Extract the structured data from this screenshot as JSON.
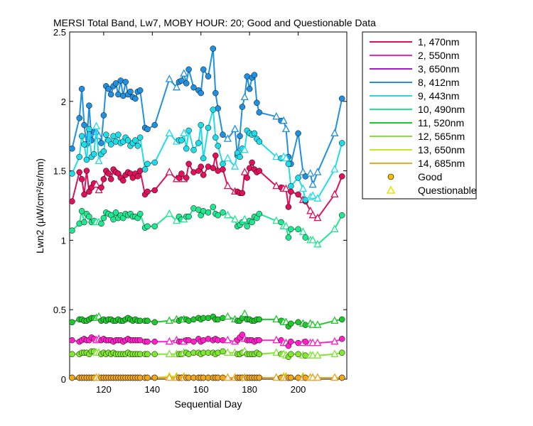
{
  "chart_data": {
    "type": "line",
    "title": "MERSI Total Band, Lw7, MOBY HOUR: 20;  Good and Questionable Data",
    "xlabel": "Sequential Day",
    "ylabel": "Lwn2 (µW/cm²/sr/nm)",
    "xlim": [
      106,
      220
    ],
    "ylim": [
      0,
      2.5
    ],
    "xticks": [
      120,
      140,
      160,
      180,
      200
    ],
    "yticks": [
      0,
      0.5,
      1,
      1.5,
      2,
      2.5
    ],
    "legend_position": "outside-right",
    "x": [
      107,
      110,
      111,
      112,
      113,
      114,
      115,
      116,
      117,
      118,
      119,
      120,
      121,
      122,
      123,
      124,
      125,
      126,
      127,
      128,
      129,
      130,
      131,
      132,
      133,
      134,
      135,
      137,
      138,
      141,
      147,
      150,
      151,
      152,
      153,
      154,
      155,
      157,
      159,
      160,
      161,
      163,
      165,
      166,
      167,
      169,
      171,
      174,
      175,
      176,
      177,
      178,
      179,
      180,
      181,
      182,
      183,
      184,
      191,
      193,
      194,
      195,
      196,
      197,
      200,
      202,
      203,
      205,
      206,
      208,
      215,
      218
    ],
    "quality": [
      "G",
      "G",
      "G",
      "G",
      "G",
      "G",
      "G",
      "G",
      "Q",
      "Q",
      "G",
      "G",
      "G",
      "G",
      "G",
      "G",
      "G",
      "G",
      "G",
      "G",
      "G",
      "G",
      "G",
      "G",
      "G",
      "G",
      "G",
      "G",
      "G",
      "G",
      "Q",
      "Q",
      "G",
      "G",
      "Q",
      "G",
      "G",
      "G",
      "G",
      "G",
      "G",
      "G",
      "G",
      "G",
      "G",
      "G",
      "Q",
      "Q",
      "G",
      "G",
      "G",
      "Q",
      "G",
      "G",
      "G",
      "G",
      "G",
      "G",
      "Q",
      "G",
      "Q",
      "Q",
      "G",
      "G",
      "G",
      "Q",
      "G",
      "Q",
      "Q",
      "Q",
      "Q",
      "G"
    ],
    "series": [
      {
        "name": "1, 470nm",
        "color": "#E0105A",
        "values": [
          1.28,
          1.49,
          1.44,
          1.33,
          1.5,
          1.35,
          1.38,
          1.41,
          1.4,
          1.36,
          1.38,
          1.44,
          1.5,
          1.48,
          1.44,
          1.51,
          1.49,
          1.48,
          1.45,
          1.43,
          1.47,
          1.49,
          1.48,
          1.45,
          1.48,
          1.46,
          1.5,
          1.33,
          1.35,
          1.36,
          1.49,
          1.44,
          1.45,
          1.48,
          1.44,
          1.45,
          1.55,
          1.49,
          1.5,
          1.53,
          1.47,
          1.53,
          1.52,
          1.61,
          1.5,
          1.51,
          1.39,
          1.35,
          1.35,
          1.34,
          1.34,
          1.49,
          1.45,
          1.52,
          1.56,
          1.51,
          1.49,
          1.5,
          1.39,
          1.38,
          1.37,
          1.37,
          1.24,
          1.35,
          1.33,
          1.29,
          1.28,
          1.21,
          1.18,
          1.16,
          1.33,
          1.46
        ]
      },
      {
        "name": "2, 550nm",
        "color": "#FF20C8",
        "values": [
          0.28,
          0.27,
          0.28,
          0.29,
          0.28,
          0.28,
          0.3,
          0.29,
          0.28,
          0.29,
          0.28,
          0.29,
          0.28,
          0.28,
          0.28,
          0.27,
          0.28,
          0.28,
          0.28,
          0.27,
          0.28,
          0.29,
          0.28,
          0.28,
          0.28,
          0.28,
          0.28,
          0.27,
          0.27,
          0.27,
          0.27,
          0.28,
          0.27,
          0.27,
          0.27,
          0.28,
          0.28,
          0.27,
          0.29,
          0.27,
          0.28,
          0.29,
          0.28,
          0.29,
          0.28,
          0.28,
          0.28,
          0.27,
          0.28,
          0.3,
          0.32,
          0.29,
          0.28,
          0.28,
          0.28,
          0.27,
          0.28,
          0.28,
          0.28,
          0.28,
          0.26,
          0.26,
          0.24,
          0.27,
          0.26,
          0.26,
          0.27,
          0.26,
          0.26,
          0.26,
          0.27,
          0.29
        ]
      },
      {
        "name": "3, 650nm",
        "color": "#A020C8",
        "values": [
          0.01,
          0.01,
          0.01,
          0.01,
          0.01,
          0.01,
          0.01,
          0.01,
          0.01,
          0.01,
          0.01,
          0.01,
          0.01,
          0.01,
          0.01,
          0.01,
          0.01,
          0.01,
          0.01,
          0.01,
          0.01,
          0.01,
          0.01,
          0.01,
          0.01,
          0.01,
          0.01,
          0.01,
          0.01,
          0.01,
          0.01,
          0.01,
          0.01,
          0.01,
          0.01,
          0.01,
          0.01,
          0.01,
          0.01,
          0.01,
          0.01,
          0.01,
          0.01,
          0.01,
          0.01,
          0.01,
          0.01,
          0.01,
          0.01,
          0.01,
          0.01,
          0.01,
          0.01,
          0.01,
          0.01,
          0.01,
          0.01,
          0.01,
          0.01,
          0.01,
          0.01,
          0.01,
          0.01,
          0.01,
          0.01,
          0.01,
          0.01,
          0.01,
          0.01,
          0.01,
          0.01,
          0.01
        ]
      },
      {
        "name": "8, 412nm",
        "color": "#2090E0",
        "values": [
          1.66,
          1.88,
          2.09,
          1.83,
          1.69,
          1.97,
          1.72,
          1.78,
          1.78,
          1.75,
          1.7,
          1.9,
          2.11,
          2.09,
          2.05,
          2.11,
          2.13,
          2.05,
          2.15,
          2.04,
          2.14,
          2.05,
          2.07,
          2.03,
          2.02,
          2.07,
          2.08,
          1.81,
          1.8,
          1.83,
          2.16,
          2.1,
          2.14,
          2.15,
          2.2,
          2.13,
          2.23,
          2.1,
          2.08,
          2.06,
          2.23,
          2.18,
          2.38,
          2.06,
          1.95,
          1.76,
          1.73,
          1.8,
          1.61,
          1.75,
          1.96,
          2.03,
          2.18,
          2.09,
          2.17,
          2.19,
          1.99,
          1.92,
          1.89,
          1.86,
          1.86,
          1.8,
          1.6,
          1.55,
          1.77,
          1.49,
          1.46,
          1.48,
          1.4,
          1.49,
          1.77,
          2.02
        ]
      },
      {
        "name": "9, 443nm",
        "color": "#20DCE8",
        "values": [
          1.48,
          1.6,
          1.75,
          1.69,
          1.58,
          1.8,
          1.6,
          1.62,
          1.82,
          1.57,
          1.62,
          1.64,
          1.76,
          1.72,
          1.69,
          1.75,
          1.71,
          1.76,
          1.7,
          1.71,
          1.74,
          1.72,
          1.68,
          1.7,
          1.72,
          1.68,
          1.74,
          1.51,
          1.55,
          1.56,
          1.77,
          1.71,
          1.72,
          1.72,
          1.77,
          1.66,
          1.79,
          1.65,
          1.7,
          1.83,
          1.59,
          1.81,
          1.94,
          1.74,
          1.68,
          1.55,
          1.59,
          1.53,
          1.63,
          1.6,
          1.66,
          1.65,
          1.79,
          1.77,
          1.76,
          1.77,
          1.73,
          1.71,
          1.6,
          1.59,
          1.6,
          1.59,
          1.55,
          1.39,
          1.45,
          1.37,
          1.29,
          1.31,
          1.32,
          1.3,
          1.51,
          1.7
        ]
      },
      {
        "name": "10, 490nm",
        "color": "#20E890",
        "values": [
          1.07,
          1.12,
          1.21,
          1.13,
          1.19,
          1.17,
          1.13,
          1.14,
          1.13,
          1.13,
          1.12,
          1.16,
          1.2,
          1.19,
          1.18,
          1.15,
          1.2,
          1.16,
          1.18,
          1.16,
          1.19,
          1.18,
          1.19,
          1.17,
          1.17,
          1.16,
          1.19,
          1.09,
          1.1,
          1.1,
          1.19,
          1.14,
          1.17,
          1.15,
          1.15,
          1.17,
          1.17,
          1.23,
          1.22,
          1.18,
          1.21,
          1.2,
          1.24,
          1.19,
          1.18,
          1.2,
          1.18,
          1.15,
          1.1,
          1.11,
          1.13,
          1.15,
          1.1,
          1.14,
          1.13,
          1.17,
          1.16,
          1.19,
          1.14,
          1.13,
          1.1,
          1.1,
          1.02,
          1.08,
          1.08,
          1.06,
          1.02,
          1.0,
          1.0,
          0.97,
          1.08,
          1.18
        ]
      },
      {
        "name": "11, 520nm",
        "color": "#20C830",
        "values": [
          0.41,
          0.43,
          0.43,
          0.42,
          0.42,
          0.43,
          0.44,
          0.44,
          0.44,
          0.45,
          0.42,
          0.43,
          0.42,
          0.43,
          0.43,
          0.42,
          0.42,
          0.43,
          0.42,
          0.42,
          0.43,
          0.44,
          0.43,
          0.42,
          0.43,
          0.42,
          0.42,
          0.42,
          0.42,
          0.41,
          0.42,
          0.43,
          0.42,
          0.43,
          0.43,
          0.43,
          0.42,
          0.43,
          0.44,
          0.43,
          0.44,
          0.44,
          0.45,
          0.43,
          0.43,
          0.44,
          0.45,
          0.43,
          0.42,
          0.42,
          0.44,
          0.47,
          0.43,
          0.43,
          0.42,
          0.42,
          0.43,
          0.43,
          0.43,
          0.42,
          0.41,
          0.41,
          0.38,
          0.4,
          0.41,
          0.4,
          0.39,
          0.4,
          0.39,
          0.39,
          0.42,
          0.43
        ]
      },
      {
        "name": "12, 565nm",
        "color": "#80E830",
        "values": [
          0.18,
          0.18,
          0.19,
          0.19,
          0.19,
          0.18,
          0.2,
          0.2,
          0.19,
          0.19,
          0.18,
          0.19,
          0.18,
          0.19,
          0.18,
          0.19,
          0.18,
          0.18,
          0.18,
          0.18,
          0.18,
          0.19,
          0.18,
          0.18,
          0.18,
          0.18,
          0.18,
          0.18,
          0.18,
          0.18,
          0.18,
          0.18,
          0.18,
          0.18,
          0.19,
          0.19,
          0.18,
          0.19,
          0.19,
          0.18,
          0.19,
          0.19,
          0.19,
          0.18,
          0.19,
          0.2,
          0.19,
          0.19,
          0.18,
          0.18,
          0.19,
          0.2,
          0.18,
          0.18,
          0.18,
          0.18,
          0.19,
          0.18,
          0.19,
          0.18,
          0.18,
          0.17,
          0.16,
          0.18,
          0.18,
          0.17,
          0.17,
          0.17,
          0.17,
          0.17,
          0.18,
          0.19
        ]
      },
      {
        "name": "13, 650nm",
        "color": "#C8E820",
        "values": [
          0.01,
          0.01,
          0.01,
          0.01,
          0.01,
          0.01,
          0.01,
          0.01,
          0.01,
          0.01,
          0.01,
          0.01,
          0.01,
          0.01,
          0.01,
          0.01,
          0.01,
          0.01,
          0.01,
          0.01,
          0.01,
          0.01,
          0.01,
          0.01,
          0.01,
          0.01,
          0.01,
          0.01,
          0.01,
          0.01,
          0.02,
          0.02,
          0.01,
          0.01,
          0.02,
          0.01,
          0.01,
          0.01,
          0.01,
          0.01,
          0.01,
          0.01,
          0.01,
          0.01,
          0.01,
          0.01,
          0.01,
          0.01,
          0.01,
          0.01,
          0.01,
          0.01,
          0.01,
          0.01,
          0.01,
          0.01,
          0.01,
          0.01,
          0.01,
          0.01,
          0.02,
          0.02,
          0.01,
          0.01,
          0.01,
          0.02,
          0.01,
          0.01,
          0.01,
          0.01,
          0.01,
          0.01
        ]
      },
      {
        "name": "14, 685nm",
        "color": "#F0A820",
        "values": [
          0.01,
          0.01,
          0.01,
          0.01,
          0.01,
          0.01,
          0.01,
          0.01,
          0.01,
          0.01,
          0.01,
          0.01,
          0.01,
          0.01,
          0.01,
          0.01,
          0.01,
          0.01,
          0.01,
          0.01,
          0.01,
          0.01,
          0.01,
          0.01,
          0.01,
          0.01,
          0.01,
          0.01,
          0.01,
          0.01,
          0.01,
          0.01,
          0.01,
          0.01,
          0.01,
          0.01,
          0.01,
          0.01,
          0.01,
          0.01,
          0.01,
          0.01,
          0.01,
          0.01,
          0.01,
          0.01,
          0.01,
          0.01,
          0.01,
          0.01,
          0.01,
          0.01,
          0.01,
          0.01,
          0.01,
          0.01,
          0.01,
          0.01,
          0.01,
          0.01,
          0.01,
          0.01,
          0.01,
          0.01,
          0.01,
          0.01,
          0.01,
          0.01,
          0.01,
          0.01,
          0.01,
          0.01
        ]
      }
    ],
    "legend": {
      "series": [
        "1, 470nm",
        "2, 550nm",
        "3, 650nm",
        "8, 412nm",
        "9, 443nm",
        "10, 490nm",
        "11, 520nm",
        "12, 565nm",
        "13, 650nm",
        "14, 685nm"
      ],
      "markers": [
        {
          "label": "Good",
          "shape": "circle",
          "color": "#F0C000"
        },
        {
          "label": "Questionable",
          "shape": "triangle",
          "color": "#F0E000"
        }
      ]
    }
  }
}
